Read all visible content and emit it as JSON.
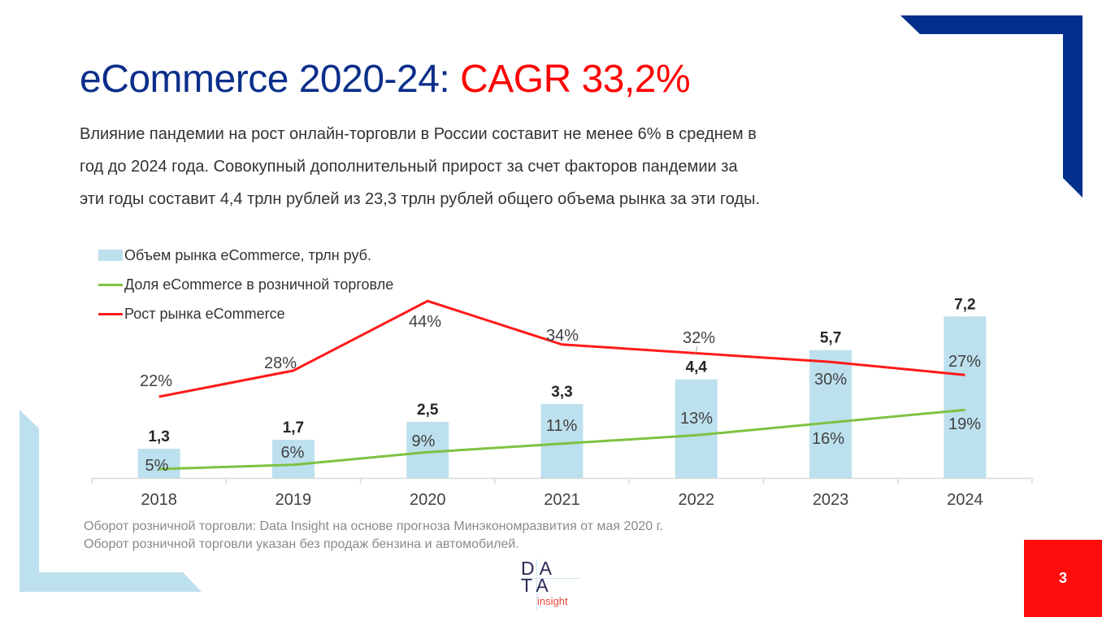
{
  "header": {
    "title_main": "eCommerce 2020-24: ",
    "title_accent": "CAGR 33,2%",
    "subtitle_lines": [
      "Влияние пандемии на рост онлайн-торговли в России составит не менее 6% в среднем в",
      "год до 2024 года. Совокупный дополнительный прирост за счет факторов пандемии за",
      "эти годы составит 4,4 трлн рублей из 23,3 трлн рублей общего объема рынка за эти годы."
    ]
  },
  "colors": {
    "title_blue": "#0b2f8a",
    "accent_red": "#ff0000",
    "bar": "#bde0ee",
    "share_line": "#7dc242",
    "growth_line": "#ff1a1a",
    "deco_blue": "#00308c",
    "deco_light": "#bde0ee"
  },
  "chart_data": {
    "type": "bar",
    "title": "",
    "xlabel": "",
    "ylabel": "",
    "categories": [
      "2018",
      "2019",
      "2020",
      "2021",
      "2022",
      "2023",
      "2024"
    ],
    "legend_position": "top-left",
    "grid": false,
    "series": [
      {
        "name": "Объем рынка eCommerce, трлн руб.",
        "type": "bar",
        "values": [
          1.3,
          1.7,
          2.5,
          3.3,
          4.4,
          5.7,
          7.2
        ],
        "labels": [
          "1,3",
          "1,7",
          "2,5",
          "3,3",
          "4,4",
          "5,7",
          "7,2"
        ]
      },
      {
        "name": "Доля eCommerce в розничной торговле",
        "type": "line",
        "values": [
          5,
          6,
          9,
          11,
          13,
          16,
          19
        ],
        "labels": [
          "5%",
          "6%",
          "9%",
          "11%",
          "13%",
          "16%",
          "19%"
        ]
      },
      {
        "name": "Рост рынка eCommerce",
        "type": "line",
        "values": [
          22,
          28,
          44,
          34,
          32,
          30,
          27
        ],
        "labels": [
          "22%",
          "28%",
          "44%",
          "34%",
          "32%",
          "30%",
          "27%"
        ]
      }
    ]
  },
  "footer": {
    "notes": [
      "Оборот розничной торговли: Data Insight на основе прогноза Минэкономразвития от мая 2020 г.",
      "Оборот розничной торговли указан без продаж бензина и автомобилей."
    ],
    "logo": {
      "line1": "DA",
      "line2": "TA",
      "line3": "insight"
    },
    "page_number": "3"
  }
}
